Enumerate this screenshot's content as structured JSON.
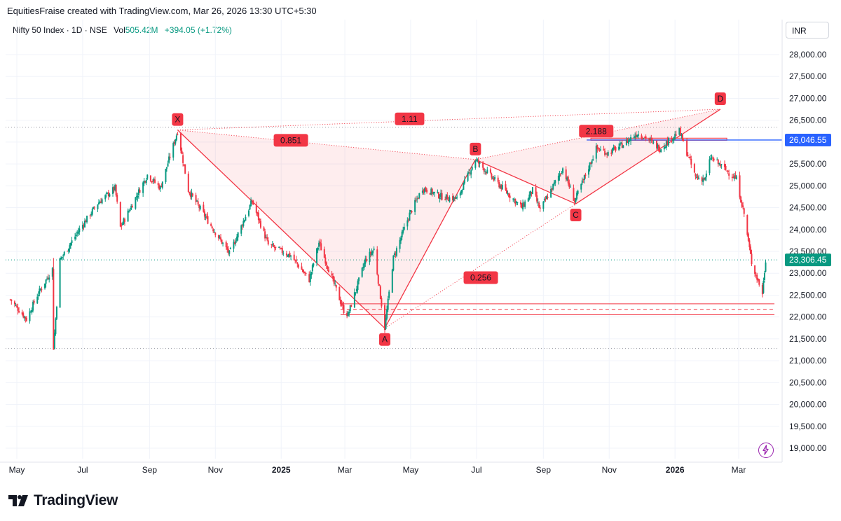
{
  "header": {
    "title": "EquitiesFraise created with TradingView.com, Mar 26, 2026 13:30 UTC+5:30"
  },
  "legend": {
    "symbol": "Nifty 50 Index · 1D · NSE",
    "vol_label": "Vol",
    "vol_value": "505.42M",
    "change": "+394.05 (+1.72%)"
  },
  "currency": "INR",
  "brand": "TradingView",
  "colors": {
    "up": "#089981",
    "down": "#f23645",
    "pattern": "#f23645",
    "level": "#2962ff"
  },
  "chart_data": {
    "type": "candlestick",
    "ylim": [
      18850,
      28300
    ],
    "y_ticks": [
      "28,000.00",
      "27,500.00",
      "27,000.00",
      "26,500.00",
      "26,000.00",
      "25,500.00",
      "25,000.00",
      "24,500.00",
      "24,000.00",
      "23,500.00",
      "23,000.00",
      "22,500.00",
      "22,000.00",
      "21,500.00",
      "21,000.00",
      "20,500.00",
      "20,000.00",
      "19,500.00",
      "19,000.00"
    ],
    "y_tick_values": [
      28000,
      27500,
      27000,
      26500,
      26000,
      25500,
      25000,
      24500,
      24000,
      23500,
      23000,
      22500,
      22000,
      21500,
      21000,
      20500,
      20000,
      19500,
      19000
    ],
    "x_labels": [
      {
        "label": "May",
        "date": "2024-05-01",
        "bold": false
      },
      {
        "label": "Jul",
        "date": "2024-07-01",
        "bold": false
      },
      {
        "label": "Sep",
        "date": "2024-09-01",
        "bold": false
      },
      {
        "label": "Nov",
        "date": "2024-11-01",
        "bold": false
      },
      {
        "label": "2025",
        "date": "2025-01-01",
        "bold": true
      },
      {
        "label": "Mar",
        "date": "2025-03-01",
        "bold": false
      },
      {
        "label": "May",
        "date": "2025-05-01",
        "bold": false
      },
      {
        "label": "Jul",
        "date": "2025-07-01",
        "bold": false
      },
      {
        "label": "Sep",
        "date": "2025-09-01",
        "bold": false
      },
      {
        "label": "Nov",
        "date": "2025-11-01",
        "bold": false
      },
      {
        "label": "2026",
        "date": "2026-01-01",
        "bold": true
      },
      {
        "label": "Mar",
        "date": "2026-03-01",
        "bold": false
      }
    ],
    "price_path": [
      [
        "2024-04-25",
        22400
      ],
      [
        "2024-05-10",
        21950
      ],
      [
        "2024-05-20",
        22500
      ],
      [
        "2024-06-03",
        23100
      ],
      [
        "2024-06-04",
        21300
      ],
      [
        "2024-06-10",
        23300
      ],
      [
        "2024-06-28",
        24000
      ],
      [
        "2024-07-15",
        24600
      ],
      [
        "2024-07-31",
        24950
      ],
      [
        "2024-08-05",
        24050
      ],
      [
        "2024-08-30",
        25250
      ],
      [
        "2024-09-11",
        24950
      ],
      [
        "2024-09-27",
        26250
      ],
      [
        "2024-10-07",
        24900
      ],
      [
        "2024-10-25",
        24200
      ],
      [
        "2024-11-14",
        23450
      ],
      [
        "2024-11-22",
        23900
      ],
      [
        "2024-12-05",
        24650
      ],
      [
        "2024-12-20",
        23650
      ],
      [
        "2025-01-10",
        23400
      ],
      [
        "2025-01-27",
        22850
      ],
      [
        "2025-02-05",
        23700
      ],
      [
        "2025-02-28",
        22150
      ],
      [
        "2025-03-04",
        22050
      ],
      [
        "2025-03-20",
        23300
      ],
      [
        "2025-03-28",
        23550
      ],
      [
        "2025-04-07",
        21750
      ],
      [
        "2025-04-15",
        23350
      ],
      [
        "2025-04-30",
        24350
      ],
      [
        "2025-05-12",
        24950
      ],
      [
        "2025-05-30",
        24750
      ],
      [
        "2025-06-13",
        24700
      ],
      [
        "2025-06-30",
        25600
      ],
      [
        "2025-07-15",
        25200
      ],
      [
        "2025-07-31",
        24800
      ],
      [
        "2025-08-12",
        24500
      ],
      [
        "2025-08-22",
        24900
      ],
      [
        "2025-08-29",
        24450
      ],
      [
        "2025-09-19",
        25400
      ],
      [
        "2025-09-30",
        24650
      ],
      [
        "2025-10-20",
        25850
      ],
      [
        "2025-10-31",
        25750
      ],
      [
        "2025-11-14",
        25950
      ],
      [
        "2025-11-27",
        26200
      ],
      [
        "2025-12-05",
        26100
      ],
      [
        "2025-12-18",
        25850
      ],
      [
        "2026-01-05",
        26250
      ],
      [
        "2026-01-20",
        25200
      ],
      [
        "2026-01-29",
        25150
      ],
      [
        "2026-02-03",
        25650
      ],
      [
        "2026-02-13",
        25450
      ],
      [
        "2026-02-27",
        25150
      ],
      [
        "2026-03-06",
        24350
      ],
      [
        "2026-03-13",
        23250
      ],
      [
        "2026-03-20",
        22750
      ],
      [
        "2026-03-23",
        22550
      ],
      [
        "2026-03-26",
        23306.45
      ]
    ],
    "harmonic_pattern": {
      "points": [
        {
          "label": "X",
          "date": "2024-09-27",
          "price": 26277
        },
        {
          "label": "A",
          "date": "2025-04-07",
          "price": 21743
        },
        {
          "label": "B",
          "date": "2025-06-30",
          "price": 25600
        },
        {
          "label": "C",
          "date": "2025-10-01",
          "price": 24588
        },
        {
          "label": "D",
          "date": "2026-02-12",
          "price": 26750
        }
      ],
      "ratios": [
        {
          "label": "0.851",
          "between": [
            "X",
            "B"
          ]
        },
        {
          "label": "1.11",
          "between": [
            "X",
            "D"
          ]
        },
        {
          "label": "0.256",
          "between": [
            "A",
            "C"
          ]
        },
        {
          "label": "2.188",
          "between": [
            "B",
            "D"
          ]
        }
      ]
    },
    "levels": {
      "dotted_gray": [
        26340,
        23306.45,
        21281
      ],
      "support_zone": [
        22050,
        22300
      ],
      "support_mid": 22175,
      "blue_level": 26046.55,
      "blue_level_label": "26,046.55",
      "red_zone": [
        26040,
        26090
      ]
    },
    "last_price": 23306.45,
    "last_price_label": "23,306.45"
  }
}
